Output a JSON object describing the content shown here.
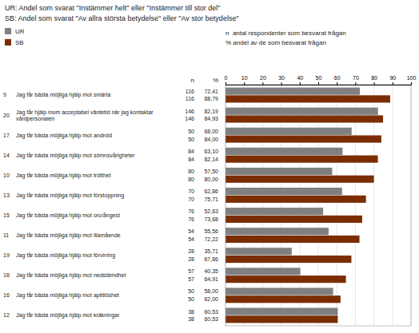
{
  "chart_data": {
    "type": "bar",
    "orientation": "horizontal",
    "title": "UR: Andel som svarat \"Instämmer helt\" eller \"Instämmer till stor del\"",
    "subtitle": "SB: Andel som svarat \"Av allra största betydelse\" eller \"Av stor betydelse\"",
    "annotations": [
      "n  antal respondenter som besvarat frågan",
      "% andel av de som besvarat frågan"
    ],
    "table_headers": [
      "n",
      "%"
    ],
    "category_numbers": [
      "9",
      "20",
      "17",
      "14",
      "10",
      "13",
      "15",
      "11",
      "19",
      "18",
      "16",
      "12"
    ],
    "categories": [
      "Jag får bästa möjliga hjälp mot smärta",
      [
        "Jag får hjälp inom acceptabel väntetid när jag kontaktar",
        "vårdpersonalen"
      ],
      "Jag får bästa möjliga hjälp mot andnöd",
      "Jag får bästa möjliga hjälp mot sömnsvårigheter",
      "Jag får bästa möjliga hjälp mot trötthet",
      "Jag får bästa möjliga hjälp mot förstoppning",
      "Jag får bästa möjliga hjälp mot oro/ångest",
      "Jag får bästa möjliga hjälp mot illamående",
      "Jag får bästa möjliga hjälp mot förvirring",
      "Jag får bästa möjliga hjälp mot nedstämdhet",
      "Jag får bästa möjliga hjälp mot aptitlöshet",
      "Jag får bästa möjliga hjälp mot kräkningar"
    ],
    "series": [
      {
        "name": "UR",
        "color": "#808080",
        "n": [
          116,
          146,
          50,
          84,
          80,
          70,
          76,
          54,
          28,
          57,
          50,
          38
        ],
        "values": [
          72.41,
          82.19,
          68.0,
          63.1,
          57.5,
          62.86,
          52.63,
          55.56,
          35.71,
          40.35,
          58.0,
          60.53
        ],
        "value_labels": [
          "72,41",
          "82,19",
          "68,00",
          "63,10",
          "57,50",
          "62,86",
          "52,63",
          "55,56",
          "35,71",
          "40,35",
          "58,00",
          "60,53"
        ]
      },
      {
        "name": "SB",
        "color": "#7B2D00",
        "n": [
          116,
          146,
          50,
          84,
          80,
          70,
          76,
          54,
          28,
          57,
          50,
          38
        ],
        "values": [
          88.79,
          84.93,
          84.0,
          82.14,
          80.0,
          75.71,
          73.68,
          72.22,
          67.86,
          64.91,
          62.0,
          60.53
        ],
        "value_labels": [
          "88,79",
          "84,93",
          "84,00",
          "82,14",
          "80,00",
          "75,71",
          "73,68",
          "72,22",
          "67,86",
          "64,91",
          "62,00",
          "60,53"
        ]
      }
    ],
    "xlim": [
      0,
      100
    ],
    "xticks": [
      0,
      10,
      20,
      30,
      40,
      50,
      60,
      70,
      80,
      90,
      100
    ],
    "grid": true
  }
}
